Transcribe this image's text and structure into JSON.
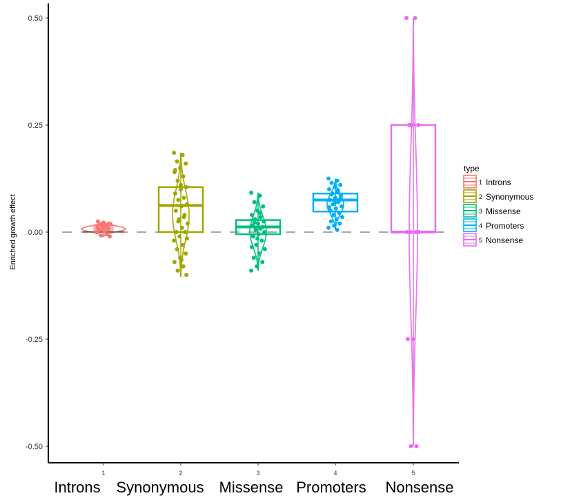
{
  "chart_data": {
    "type": "boxplot",
    "ylabel": "Enriched growth effect",
    "ylim": [
      -0.52,
      0.53
    ],
    "y_ticks": [
      "0.50",
      "0.25",
      "0.00",
      "-0.25",
      "-0.50"
    ],
    "y_tick_values": [
      0.5,
      0.25,
      0.0,
      -0.25,
      -0.5
    ],
    "reference_line": 0.0,
    "x_ticks": [
      "1",
      "2",
      "3",
      "4",
      "5"
    ],
    "categories": [
      "Introns",
      "Synonymous",
      "Missense",
      "Promoters",
      "Nonsense"
    ],
    "legend": {
      "title": "type",
      "placement": "right",
      "entries": [
        {
          "num": "1",
          "label": "Introns"
        },
        {
          "num": "2",
          "label": "Synonymous"
        },
        {
          "num": "3",
          "label": "Missense"
        },
        {
          "num": "4",
          "label": "Promoters"
        },
        {
          "num": "5",
          "label": "Nonsense"
        }
      ]
    },
    "series": [
      {
        "color": "#F8766D",
        "q1": 0.0,
        "median": 0.005,
        "q3": 0.015,
        "min": -0.01,
        "max": 0.025,
        "points": [
          0.0,
          0.002,
          0.005,
          0.008,
          0.01,
          0.012,
          0.015,
          0.018,
          0.02,
          0.022,
          0.025,
          -0.005,
          -0.008,
          -0.01,
          0.003,
          0.007,
          0.011,
          0.016,
          0.019,
          0.001
        ]
      },
      {
        "color": "#A3A500",
        "q1": 0.0,
        "median": 0.062,
        "q3": 0.105,
        "min": -0.105,
        "max": 0.185,
        "points": [
          0.185,
          0.18,
          0.165,
          0.16,
          0.15,
          0.14,
          0.13,
          0.12,
          0.105,
          0.1,
          0.09,
          0.08,
          0.075,
          0.065,
          0.06,
          0.05,
          0.04,
          0.03,
          0.02,
          0.01,
          0.0,
          0.0,
          -0.01,
          -0.02,
          -0.03,
          -0.04,
          -0.05,
          -0.06,
          -0.07,
          -0.08,
          -0.09,
          -0.1,
          0.11,
          0.145,
          0.035,
          0.025,
          -0.015,
          -0.065
        ]
      },
      {
        "color": "#00BF7D",
        "q1": -0.005,
        "median": 0.012,
        "q3": 0.028,
        "min": -0.09,
        "max": 0.092,
        "points": [
          0.092,
          0.085,
          0.07,
          0.06,
          0.05,
          0.04,
          0.035,
          0.03,
          0.025,
          0.02,
          0.015,
          0.01,
          0.005,
          0.0,
          -0.005,
          -0.01,
          -0.02,
          -0.03,
          -0.04,
          -0.05,
          -0.06,
          -0.07,
          -0.08,
          -0.09,
          0.045,
          0.022,
          0.012,
          -0.015,
          -0.035,
          0.008
        ]
      },
      {
        "color": "#00B0F6",
        "q1": 0.048,
        "median": 0.075,
        "q3": 0.09,
        "min": 0.005,
        "max": 0.125,
        "points": [
          0.125,
          0.12,
          0.115,
          0.11,
          0.105,
          0.1,
          0.095,
          0.09,
          0.085,
          0.08,
          0.075,
          0.07,
          0.065,
          0.06,
          0.055,
          0.05,
          0.045,
          0.04,
          0.035,
          0.03,
          0.025,
          0.02,
          0.015,
          0.01,
          0.005,
          0.088,
          0.078,
          0.068,
          0.058,
          0.098
        ]
      },
      {
        "color": "#E76BF3",
        "q1": 0.0,
        "median": 0.0,
        "q3": 0.25,
        "min": -0.5,
        "max": 0.5,
        "points": [
          0.5,
          0.5,
          0.25,
          0.25,
          0.25,
          0.0,
          0.0,
          0.0,
          0.0,
          -0.25,
          -0.25,
          -0.5,
          -0.5
        ]
      }
    ]
  }
}
